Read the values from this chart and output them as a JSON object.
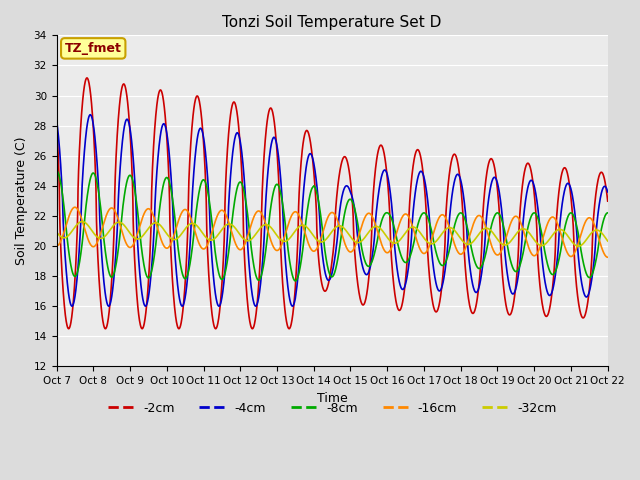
{
  "title": "Tonzi Soil Temperature Set D",
  "xlabel": "Time",
  "ylabel": "Soil Temperature (C)",
  "ylim": [
    12,
    34
  ],
  "tick_labels": [
    "Oct 7",
    "Oct 8",
    "Oct 9",
    "Oct 10",
    "Oct 11",
    "Oct 12",
    "Oct 13",
    "Oct 14",
    "Oct 15",
    "Oct 16",
    "Oct 17",
    "Oct 18",
    "Oct 19",
    "Oct 20",
    "Oct 21",
    "Oct 22"
  ],
  "annotation_text": "TZ_fmet",
  "annotation_color": "#8B0000",
  "annotation_bg": "#FFFF99",
  "annotation_border": "#C8A000",
  "series_colors": [
    "#CC0000",
    "#0000CC",
    "#00AA00",
    "#FF8800",
    "#CCCC00"
  ],
  "series_labels": [
    "-2cm",
    "-4cm",
    "-8cm",
    "-16cm",
    "-32cm"
  ],
  "bg_color": "#DCDCDC",
  "plot_bg_color": "#EBEBEB",
  "grid_color": "#FFFFFF"
}
